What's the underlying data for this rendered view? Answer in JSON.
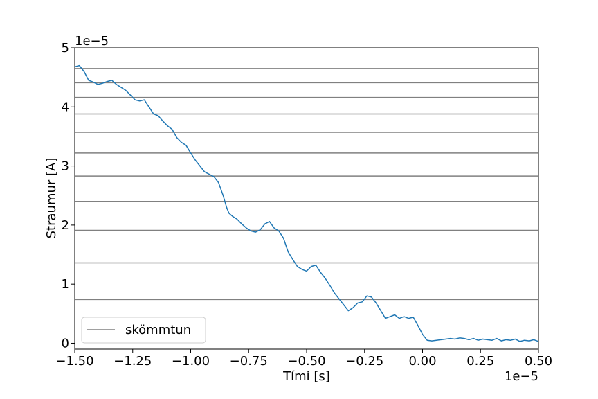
{
  "chart_data": {
    "type": "line",
    "title": "",
    "xlabel": "Tími [s]",
    "ylabel": "Straumur [A]",
    "x_offset_label": "1e−5",
    "y_offset_label": "1e−5",
    "xlim": [
      -1.5,
      0.5
    ],
    "ylim": [
      -0.1,
      5.0
    ],
    "x_ticks": [
      {
        "value": -1.5,
        "label": "−1.50"
      },
      {
        "value": -1.25,
        "label": "−1.25"
      },
      {
        "value": -1.0,
        "label": "−1.00"
      },
      {
        "value": -0.75,
        "label": "−0.75"
      },
      {
        "value": -0.5,
        "label": "−0.50"
      },
      {
        "value": -0.25,
        "label": "−0.25"
      },
      {
        "value": 0.0,
        "label": "0.00"
      },
      {
        "value": 0.25,
        "label": "0.25"
      },
      {
        "value": 0.5,
        "label": "0.50"
      }
    ],
    "y_ticks": [
      {
        "value": 0,
        "label": "0"
      },
      {
        "value": 1,
        "label": "1"
      },
      {
        "value": 2,
        "label": "2"
      },
      {
        "value": 3,
        "label": "3"
      },
      {
        "value": 4,
        "label": "4"
      },
      {
        "value": 5,
        "label": "5"
      }
    ],
    "grid": false,
    "legend": {
      "position": "lower-left",
      "entries": [
        "skömmtun"
      ]
    },
    "quantization_levels": [
      0.74,
      1.36,
      1.91,
      2.4,
      2.83,
      3.22,
      3.57,
      3.88,
      4.16,
      4.41,
      4.65
    ],
    "series": [
      {
        "color": "#1f77b4",
        "x": [
          -1.5,
          -1.48,
          -1.46,
          -1.44,
          -1.42,
          -1.4,
          -1.38,
          -1.36,
          -1.34,
          -1.32,
          -1.3,
          -1.28,
          -1.26,
          -1.24,
          -1.22,
          -1.2,
          -1.18,
          -1.16,
          -1.14,
          -1.12,
          -1.1,
          -1.08,
          -1.06,
          -1.04,
          -1.02,
          -1.0,
          -0.98,
          -0.96,
          -0.94,
          -0.92,
          -0.9,
          -0.88,
          -0.86,
          -0.845,
          -0.835,
          -0.82,
          -0.8,
          -0.78,
          -0.76,
          -0.74,
          -0.72,
          -0.7,
          -0.68,
          -0.66,
          -0.64,
          -0.62,
          -0.6,
          -0.58,
          -0.56,
          -0.54,
          -0.52,
          -0.5,
          -0.48,
          -0.46,
          -0.44,
          -0.42,
          -0.4,
          -0.38,
          -0.36,
          -0.34,
          -0.32,
          -0.3,
          -0.28,
          -0.26,
          -0.24,
          -0.22,
          -0.2,
          -0.18,
          -0.16,
          -0.14,
          -0.12,
          -0.1,
          -0.08,
          -0.06,
          -0.04,
          -0.02,
          0.0,
          0.02,
          0.04,
          0.06,
          0.08,
          0.1,
          0.12,
          0.14,
          0.16,
          0.18,
          0.2,
          0.22,
          0.24,
          0.26,
          0.28,
          0.3,
          0.32,
          0.34,
          0.36,
          0.38,
          0.4,
          0.42,
          0.44,
          0.46,
          0.48,
          0.5
        ],
        "y": [
          4.68,
          4.7,
          4.6,
          4.45,
          4.42,
          4.38,
          4.4,
          4.43,
          4.45,
          4.38,
          4.33,
          4.28,
          4.2,
          4.12,
          4.1,
          4.12,
          4.0,
          3.88,
          3.85,
          3.76,
          3.68,
          3.62,
          3.48,
          3.4,
          3.35,
          3.22,
          3.1,
          3.0,
          2.9,
          2.86,
          2.82,
          2.72,
          2.5,
          2.3,
          2.2,
          2.15,
          2.1,
          2.02,
          1.95,
          1.9,
          1.88,
          1.92,
          2.02,
          2.06,
          1.95,
          1.9,
          1.78,
          1.55,
          1.42,
          1.3,
          1.25,
          1.22,
          1.3,
          1.32,
          1.2,
          1.1,
          0.98,
          0.85,
          0.75,
          0.65,
          0.55,
          0.6,
          0.68,
          0.7,
          0.8,
          0.78,
          0.68,
          0.55,
          0.42,
          0.45,
          0.48,
          0.42,
          0.45,
          0.42,
          0.44,
          0.3,
          0.15,
          0.05,
          0.04,
          0.05,
          0.06,
          0.07,
          0.08,
          0.07,
          0.09,
          0.08,
          0.06,
          0.08,
          0.05,
          0.07,
          0.06,
          0.05,
          0.08,
          0.04,
          0.06,
          0.05,
          0.07,
          0.03,
          0.05,
          0.04,
          0.06,
          0.03
        ]
      }
    ]
  }
}
